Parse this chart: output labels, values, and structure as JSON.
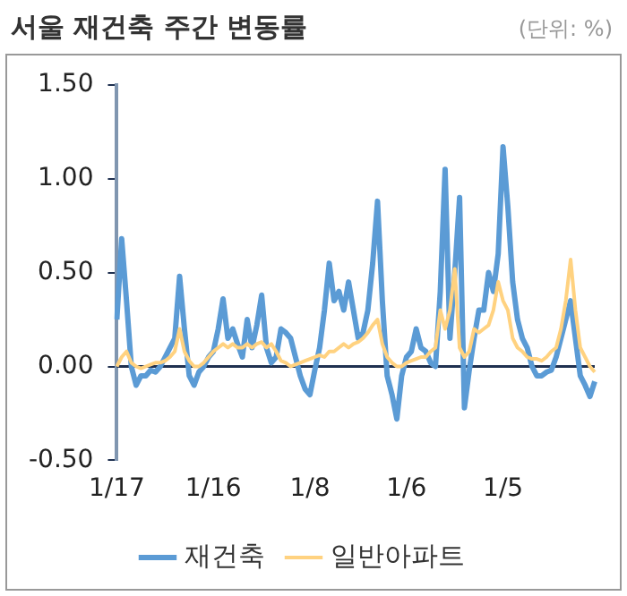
{
  "chart_data": {
    "type": "line",
    "title": "서울 재건축 주간 변동률",
    "annotations": [
      "(단위: %)"
    ],
    "categories": [
      "1/17",
      null,
      null,
      null,
      null,
      null,
      null,
      null,
      null,
      null,
      null,
      null,
      null,
      null,
      null,
      null,
      null,
      null,
      null,
      null,
      "1/16",
      null,
      null,
      null,
      null,
      null,
      null,
      null,
      null,
      null,
      null,
      null,
      null,
      null,
      null,
      null,
      null,
      null,
      null,
      null,
      "1/8",
      null,
      null,
      null,
      null,
      null,
      null,
      null,
      null,
      null,
      null,
      null,
      null,
      null,
      null,
      null,
      null,
      null,
      null,
      null,
      "1/6",
      null,
      null,
      null,
      null,
      null,
      null,
      null,
      null,
      null,
      null,
      null,
      null,
      null,
      null,
      null,
      null,
      null,
      null,
      null,
      "1/5",
      null,
      null,
      null,
      null,
      null,
      null,
      null,
      null,
      null,
      null,
      null,
      null,
      null,
      null,
      null,
      null,
      null,
      null,
      null
    ],
    "series": [
      {
        "name": "재건축",
        "color": "#5b9bd5",
        "values": [
          0.25,
          0.68,
          0.35,
          0,
          -0.1,
          -0.05,
          -0.05,
          -0.02,
          -0.03,
          0,
          0.05,
          0.1,
          0.15,
          0.48,
          0.2,
          -0.05,
          -0.1,
          -0.03,
          0,
          0.05,
          0.08,
          0.2,
          0.36,
          0.15,
          0.2,
          0.12,
          0.05,
          0.25,
          0.1,
          0.22,
          0.38,
          0.1,
          0.02,
          0.05,
          0.2,
          0.18,
          0.15,
          0.05,
          -0.05,
          -0.12,
          -0.15,
          -0.02,
          0.1,
          0.3,
          0.55,
          0.35,
          0.4,
          0.3,
          0.45,
          0.3,
          0.15,
          0.18,
          0.3,
          0.55,
          0.88,
          0.35,
          -0.05,
          -0.15,
          -0.28,
          -0.05,
          0.05,
          0.08,
          0.2,
          0.1,
          0.08,
          0.02,
          0,
          0.4,
          1.05,
          0.15,
          0.5,
          0.9,
          -0.22,
          -0.02,
          0.15,
          0.3,
          0.3,
          0.5,
          0.4,
          0.6,
          1.17,
          0.85,
          0.45,
          0.25,
          0.15,
          0.1,
          0,
          -0.05,
          -0.05,
          -0.03,
          -0.02,
          0.05,
          0.15,
          0.25,
          0.35,
          0.15,
          -0.05,
          -0.1,
          -0.16,
          -0.08
        ]
      },
      {
        "name": "일반아파트",
        "color": "#ffd280",
        "values": [
          0,
          0.05,
          0.08,
          0.02,
          0,
          -0.01,
          0,
          0.01,
          0.02,
          0.02,
          0.03,
          0.05,
          0.08,
          0.2,
          0.08,
          0.03,
          0,
          0,
          0.02,
          0.05,
          0.08,
          0.1,
          0.12,
          0.1,
          0.12,
          0.1,
          0.1,
          0.12,
          0.1,
          0.12,
          0.13,
          0.1,
          0.12,
          0.08,
          0.03,
          0.02,
          0,
          0.01,
          0.02,
          0.03,
          0.04,
          0.05,
          0.06,
          0.05,
          0.08,
          0.08,
          0.1,
          0.12,
          0.1,
          0.12,
          0.13,
          0.15,
          0.18,
          0.22,
          0.25,
          0.12,
          0.05,
          0.02,
          0,
          0,
          0.02,
          0.03,
          0.04,
          0.05,
          0.05,
          0.08,
          0.1,
          0.3,
          0.2,
          0.3,
          0.52,
          0.1,
          0.05,
          0.08,
          0.2,
          0.18,
          0.2,
          0.22,
          0.3,
          0.45,
          0.35,
          0.3,
          0.15,
          0.1,
          0.08,
          0.05,
          0.04,
          0.04,
          0.03,
          0.05,
          0.08,
          0.1,
          0.2,
          0.35,
          0.57,
          0.3,
          0.1,
          0.05,
          0,
          -0.03
        ]
      }
    ],
    "ylim": [
      -0.5,
      1.5
    ],
    "yticks": [
      {
        "value": -0.5,
        "label": "-0.50"
      },
      {
        "value": 0,
        "label": "0.00"
      },
      {
        "value": 0.5,
        "label": "0.50"
      },
      {
        "value": 1,
        "label": "1.00"
      },
      {
        "value": 1.5,
        "label": "1.50"
      }
    ],
    "ref_lines": [
      {
        "axis": "y",
        "value": 0,
        "color": "#1f3050"
      }
    ],
    "grid": false,
    "legend": "bottom",
    "marker": "none"
  }
}
